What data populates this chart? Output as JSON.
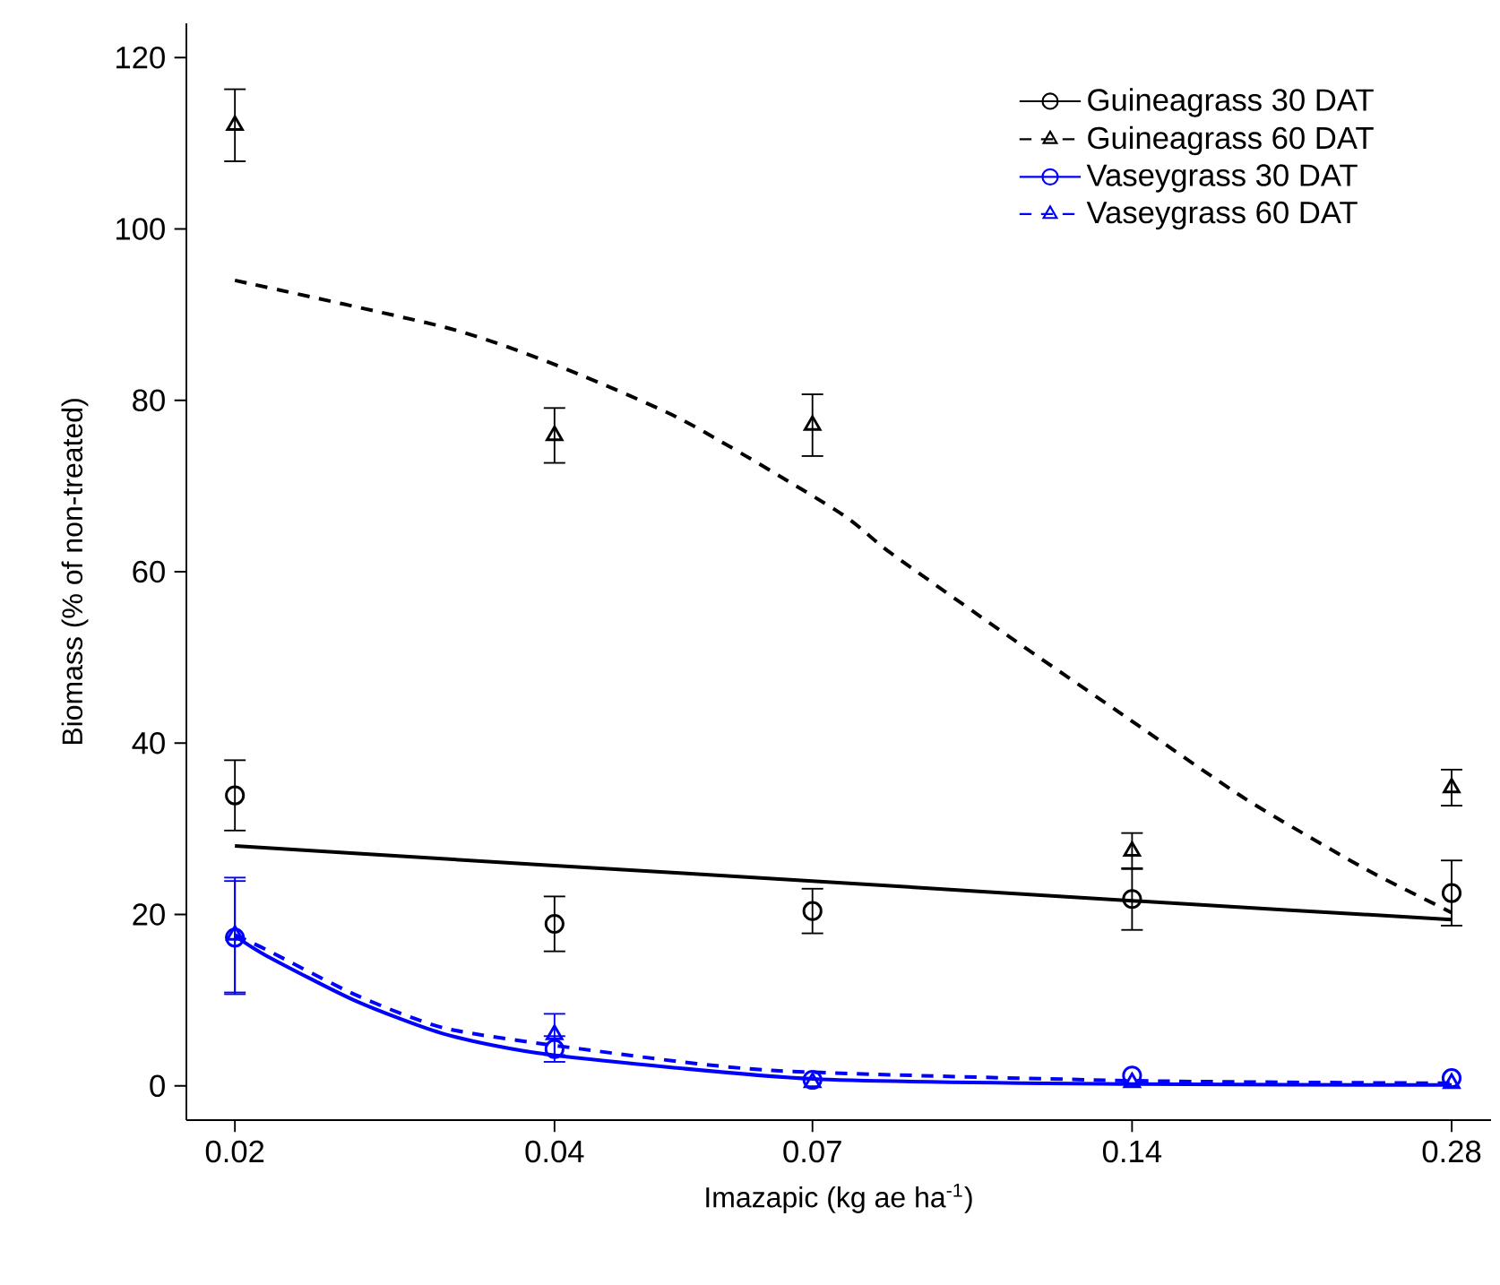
{
  "chart_data": {
    "type": "scatter",
    "xlabel": "Imazapic (kg ae ha$^{-1}$)",
    "ylabel": "Biomass (% of non-treated)",
    "log": "x",
    "xlim": [
      0.018,
      0.305
    ],
    "xticks": [
      0.02,
      0.04,
      0.07,
      0.14,
      0.28
    ],
    "ylim": [
      -4,
      124
    ],
    "yticks": [
      0,
      20,
      40,
      60,
      80,
      100,
      120
    ],
    "legend": "top right",
    "grid": false,
    "series": [
      {
        "name": "Guineagrass 30 DAT",
        "color": "#000000",
        "marker": "circle",
        "line_style": "solid",
        "x": [
          0.02,
          0.04,
          0.07,
          0.14,
          0.28
        ],
        "values": [
          33.9,
          18.9,
          20.4,
          21.8,
          22.5
        ],
        "errors": [
          4.2,
          3.3,
          2.7,
          3.7,
          3.9
        ]
      },
      {
        "name": "Guineagrass 60 DAT",
        "color": "#000000",
        "marker": "triangle",
        "line_style": "dashed",
        "x": [
          0.02,
          0.04,
          0.07,
          0.14,
          0.28
        ],
        "values": [
          112.1,
          75.9,
          77.1,
          27.4,
          34.8
        ],
        "errors": [
          4.3,
          3.3,
          3.7,
          2.2,
          2.2
        ]
      },
      {
        "name": "Vaseygrass 30 DAT",
        "color": "#0000ff",
        "marker": "circle",
        "line_style": "solid",
        "x": [
          0.02,
          0.04,
          0.07,
          0.14,
          0.28
        ],
        "values": [
          17.3,
          4.3,
          0.7,
          1.2,
          0.9
        ],
        "errors": [
          6.7,
          1.6,
          null,
          null,
          null
        ]
      },
      {
        "name": "Vaseygrass 60 DAT",
        "color": "#0000ff",
        "marker": "triangle",
        "line_style": "dashed",
        "x": [
          0.02,
          0.04,
          0.07,
          0.14,
          0.28
        ],
        "values": [
          17.6,
          6.0,
          0.4,
          0.4,
          0.3
        ],
        "errors": [
          6.8,
          2.5,
          null,
          null,
          null
        ]
      },
      {
        "type": "line",
        "color": "#000000",
        "line_style": "solid",
        "x": [
          0.02,
          0.04,
          0.07,
          0.14,
          0.28
        ],
        "values": [
          28.0,
          25.7,
          23.9,
          21.6,
          19.4
        ]
      },
      {
        "type": "line",
        "color": "#000000",
        "line_style": "dashed",
        "x": [
          0.02,
          0.0316,
          0.0398,
          0.0528,
          0.0738,
          0.0829,
          0.1073,
          0.1387,
          0.1795,
          0.2323,
          0.2711,
          0.28
        ],
        "values": [
          94.0,
          88.5,
          84.3,
          77.7,
          67.1,
          62.2,
          52.4,
          42.9,
          33.4,
          25.3,
          21.1,
          20.2
        ]
      },
      {
        "type": "line",
        "color": "#0000ff",
        "line_style": "solid",
        "x": [
          0.02,
          0.0214,
          0.026,
          0.0316,
          0.0398,
          0.0701,
          0.14,
          0.28
        ],
        "values": [
          17.5,
          15.2,
          9.9,
          6.0,
          3.6,
          0.8,
          0.2,
          0.1
        ]
      },
      {
        "type": "line",
        "color": "#0000ff",
        "line_style": "dashed",
        "x": [
          0.02,
          0.0214,
          0.026,
          0.0316,
          0.0424,
          0.0641,
          0.14,
          0.28
        ],
        "values": [
          17.6,
          15.9,
          10.6,
          6.7,
          4.3,
          1.8,
          0.6,
          0.3
        ]
      }
    ]
  }
}
